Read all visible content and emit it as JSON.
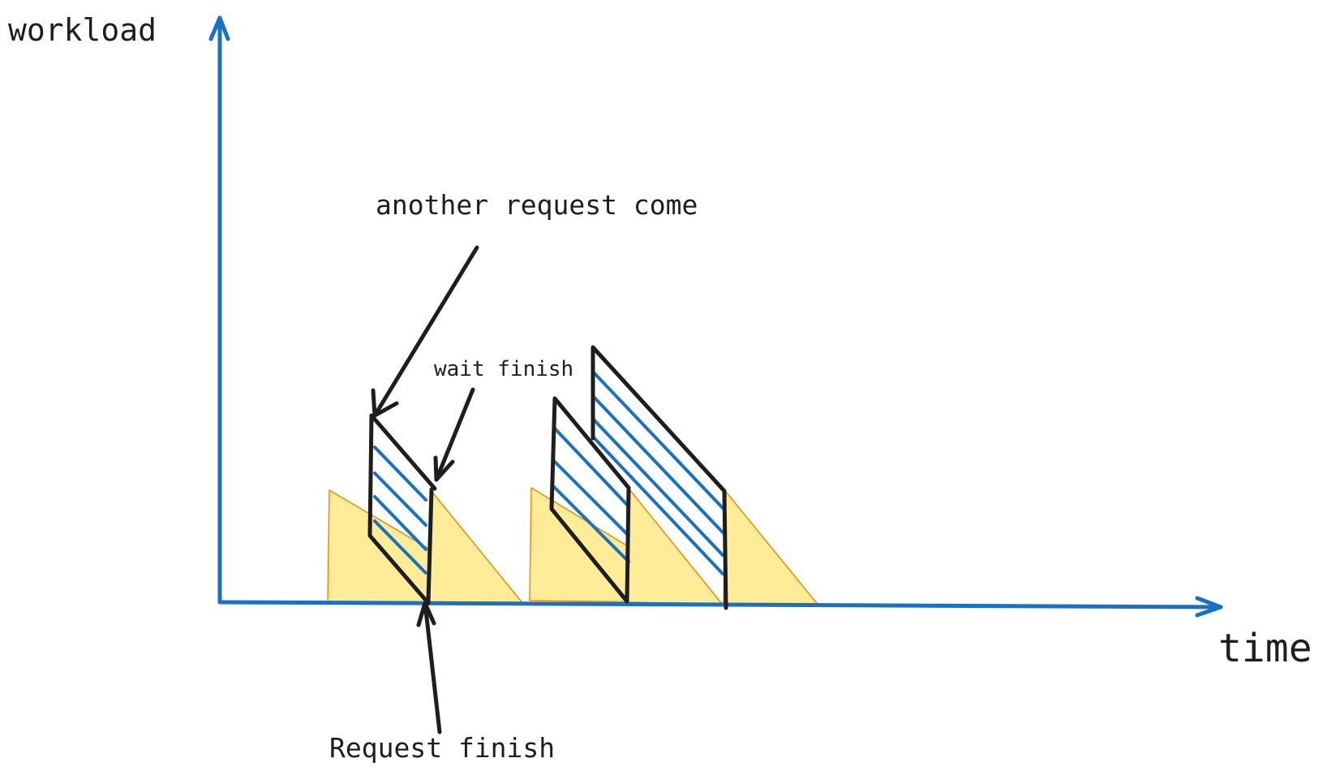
{
  "labels": {
    "y_axis": "workload",
    "x_axis": "time",
    "another_request": "another request come",
    "wait_finish": "wait finish",
    "request_finish": "Request finish"
  },
  "colors": {
    "axis": "#1971c2",
    "hatch": "#1971c2",
    "outline": "#1e1e1e",
    "fill": "#ffec99",
    "fill_stroke": "#f08c00",
    "text": "#1e1e1e"
  }
}
